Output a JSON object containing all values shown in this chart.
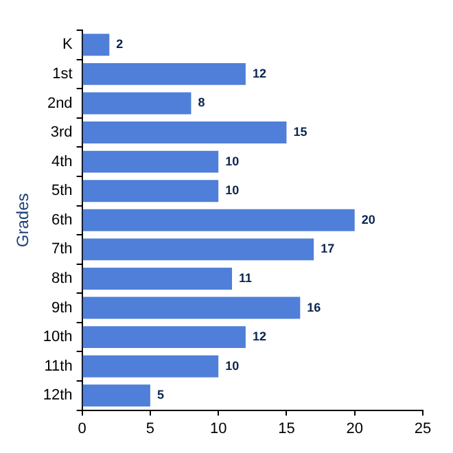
{
  "chart_data": {
    "type": "bar",
    "orientation": "horizontal",
    "ylabel": "Grades",
    "categories": [
      "K",
      "1st",
      "2nd",
      "3rd",
      "4th",
      "5th",
      "6th",
      "7th",
      "8th",
      "9th",
      "10th",
      "11th",
      "12th"
    ],
    "values": [
      2,
      12,
      8,
      15,
      10,
      10,
      20,
      17,
      11,
      16,
      12,
      10,
      5
    ],
    "color": "#4f7fd8",
    "xlim": [
      0,
      25
    ],
    "xticks": [
      0,
      5,
      10,
      15,
      20,
      25
    ],
    "grid": false,
    "legend": false,
    "data_labels": true
  }
}
